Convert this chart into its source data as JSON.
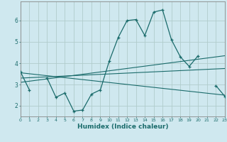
{
  "xlabel": "Humidex (Indice chaleur)",
  "background_color": "#cfe8ef",
  "grid_color": "#b0cccc",
  "line_color": "#1a6b6b",
  "x_data": [
    0,
    1,
    2,
    3,
    4,
    5,
    6,
    7,
    8,
    9,
    10,
    11,
    12,
    13,
    14,
    15,
    16,
    17,
    18,
    19,
    20,
    21,
    22,
    23
  ],
  "line1": [
    3.6,
    2.75,
    null,
    3.3,
    2.4,
    2.6,
    1.75,
    1.8,
    2.55,
    2.75,
    4.1,
    5.2,
    6.0,
    6.05,
    5.3,
    6.4,
    6.5,
    5.1,
    4.3,
    3.85,
    4.35,
    null,
    2.95,
    2.45
  ],
  "line3_x": [
    0,
    23
  ],
  "line3_y": [
    3.55,
    2.5
  ],
  "line4_x": [
    0,
    23
  ],
  "line4_y": [
    3.1,
    4.35
  ],
  "line5_x": [
    0,
    23
  ],
  "line5_y": [
    3.3,
    3.75
  ],
  "ylim": [
    1.5,
    6.9
  ],
  "xlim": [
    0,
    23
  ],
  "yticks": [
    2,
    3,
    4,
    5,
    6
  ],
  "xticks": [
    0,
    1,
    2,
    3,
    4,
    5,
    6,
    7,
    8,
    9,
    10,
    11,
    12,
    13,
    14,
    15,
    16,
    17,
    18,
    19,
    20,
    21,
    22,
    23
  ]
}
